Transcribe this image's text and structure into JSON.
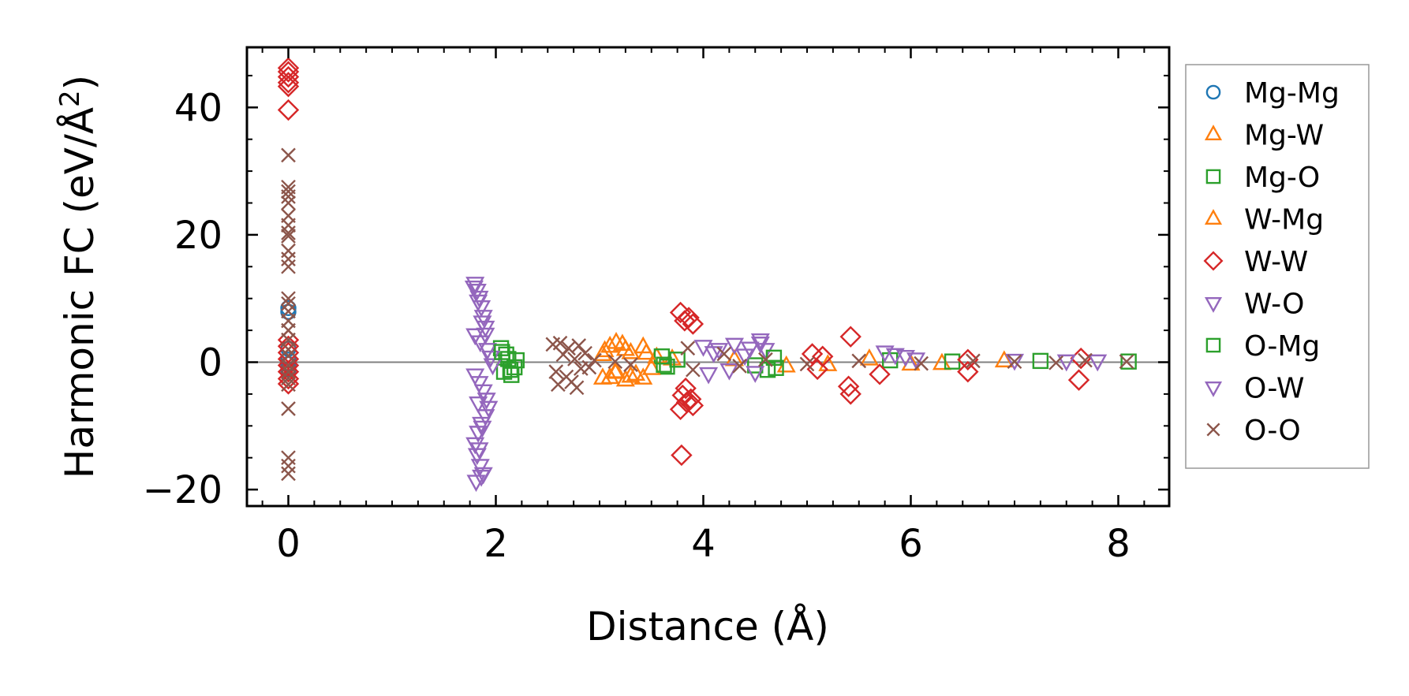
{
  "chart_data": {
    "type": "scatter",
    "xlabel": "Distance (Å)",
    "ylabel_main": "Harmonic FC (eV/Å",
    "ylabel_sup": "2",
    "ylabel_close": ")",
    "xlim": [
      -0.4,
      8.5
    ],
    "ylim": [
      -22,
      49
    ],
    "xticks": [
      0,
      2,
      4,
      6,
      8
    ],
    "yticks": [
      -20,
      0,
      20,
      40
    ],
    "xtick_labels": [
      "0",
      "2",
      "4",
      "6",
      "8"
    ],
    "ytick_labels": [
      "−20",
      "0",
      "20",
      "40"
    ],
    "zero_line": true,
    "legend_position": "outside-right",
    "legend_entries": [
      "Mg-Mg",
      "Mg-W",
      "Mg-O",
      "W-Mg",
      "W-W",
      "W-O",
      "O-Mg",
      "O-W",
      "O-O"
    ],
    "series": [
      {
        "name": "Mg-Mg",
        "marker": "circle",
        "color": "#1f77b4",
        "points": [
          [
            0,
            8.5
          ],
          [
            0,
            7.9
          ],
          [
            0,
            2.1
          ],
          [
            0,
            0.4
          ],
          [
            0,
            -0.3
          ],
          [
            0,
            -1.2
          ]
        ]
      },
      {
        "name": "Mg-W",
        "marker": "triangle-up",
        "color": "#ff7f0e",
        "points": [
          [
            3.03,
            1.2
          ],
          [
            3.03,
            -2.5
          ],
          [
            3.1,
            2.5
          ],
          [
            3.1,
            -2.4
          ],
          [
            3.16,
            3.1
          ],
          [
            3.16,
            -1.5
          ],
          [
            3.25,
            2.0
          ],
          [
            3.25,
            -2.8
          ],
          [
            3.3,
            1.5
          ],
          [
            3.3,
            -2.2
          ],
          [
            3.42,
            2.4
          ],
          [
            3.42,
            -2.5
          ],
          [
            3.55,
            0.8
          ],
          [
            3.7,
            0.5
          ],
          [
            4.3,
            0.4
          ],
          [
            4.8,
            -0.6
          ],
          [
            5.2,
            -0.4
          ],
          [
            5.6,
            0.5
          ],
          [
            6.0,
            -0.3
          ],
          [
            6.3,
            -0.2
          ],
          [
            6.9,
            0.2
          ]
        ]
      },
      {
        "name": "Mg-O",
        "marker": "square",
        "color": "#2ca02c",
        "points": [
          [
            2.05,
            2.2
          ],
          [
            2.08,
            -1.5
          ],
          [
            2.1,
            1.2
          ],
          [
            2.12,
            0.5
          ],
          [
            2.15,
            -2.0
          ],
          [
            2.18,
            -0.8
          ],
          [
            3.6,
            0.9
          ],
          [
            3.65,
            -0.7
          ],
          [
            3.75,
            0.4
          ],
          [
            4.5,
            -0.5
          ],
          [
            4.62,
            -1.2
          ],
          [
            4.7,
            -0.9
          ],
          [
            5.8,
            0.3
          ],
          [
            6.4,
            0.1
          ],
          [
            7.25,
            0.2
          ],
          [
            8.1,
            0.1
          ]
        ]
      },
      {
        "name": "W-Mg",
        "marker": "triangle-up",
        "color": "#ff7f0e",
        "points": [
          [
            3.05,
            1.8
          ],
          [
            3.15,
            -1.6
          ],
          [
            3.22,
            2.8
          ],
          [
            3.35,
            -1.9
          ],
          [
            3.45,
            1.4
          ],
          [
            3.5,
            -1.0
          ]
        ]
      },
      {
        "name": "W-W",
        "marker": "diamond",
        "color": "#d62728",
        "points": [
          [
            0,
            46.2
          ],
          [
            0,
            45.6
          ],
          [
            0,
            44.8
          ],
          [
            0,
            43.9
          ],
          [
            0,
            43.3
          ],
          [
            0,
            39.6
          ],
          [
            0,
            3.5
          ],
          [
            0,
            2.5
          ],
          [
            0,
            1.5
          ],
          [
            0,
            0.5
          ],
          [
            0,
            -0.5
          ],
          [
            0,
            -1.5
          ],
          [
            0,
            -2.6
          ],
          [
            0,
            -3.4
          ],
          [
            3.78,
            7.8
          ],
          [
            3.82,
            6.5
          ],
          [
            3.86,
            7.0
          ],
          [
            3.9,
            6.0
          ],
          [
            3.8,
            -5.2
          ],
          [
            3.84,
            -6.3
          ],
          [
            3.88,
            -5.8
          ],
          [
            3.78,
            -7.4
          ],
          [
            3.9,
            -6.8
          ],
          [
            3.79,
            -14.6
          ],
          [
            3.83,
            -4.1
          ],
          [
            5.05,
            1.3
          ],
          [
            5.15,
            0.9
          ],
          [
            5.1,
            -1.1
          ],
          [
            5.42,
            4.0
          ],
          [
            5.4,
            -3.8
          ],
          [
            5.42,
            -5.0
          ],
          [
            5.7,
            -1.9
          ],
          [
            6.55,
            0.4
          ],
          [
            6.55,
            -1.5
          ],
          [
            7.64,
            0.6
          ],
          [
            7.62,
            -2.8
          ]
        ]
      },
      {
        "name": "W-O",
        "marker": "triangle-down",
        "color": "#9467bd",
        "points": [
          [
            1.8,
            12.4
          ],
          [
            1.82,
            11.3
          ],
          [
            1.84,
            10.2
          ],
          [
            1.86,
            8.7
          ],
          [
            1.88,
            7.2
          ],
          [
            1.9,
            5.5
          ],
          [
            1.8,
            4.3
          ],
          [
            1.85,
            3.2
          ],
          [
            1.92,
            2.0
          ],
          [
            1.95,
            0.8
          ],
          [
            1.97,
            -0.4
          ],
          [
            1.8,
            -2.0
          ],
          [
            1.84,
            -3.2
          ],
          [
            1.88,
            -4.5
          ],
          [
            1.91,
            -5.8
          ],
          [
            1.93,
            -7.1
          ],
          [
            1.9,
            -8.4
          ],
          [
            1.86,
            -9.6
          ],
          [
            1.83,
            -11.0
          ],
          [
            1.8,
            -12.8
          ],
          [
            1.82,
            -14.5
          ],
          [
            1.85,
            -16.2
          ],
          [
            1.88,
            -17.5
          ],
          [
            1.81,
            -18.7
          ],
          [
            4.0,
            2.5
          ],
          [
            4.15,
            2.0
          ],
          [
            4.3,
            2.8
          ],
          [
            4.45,
            2.2
          ],
          [
            4.55,
            3.5
          ],
          [
            4.6,
            2.0
          ],
          [
            4.05,
            -1.8
          ],
          [
            4.25,
            -1.2
          ],
          [
            4.5,
            -1.6
          ],
          [
            5.75,
            1.6
          ],
          [
            5.85,
            1.2
          ],
          [
            6.05,
            0.5
          ],
          [
            7.0,
            0.3
          ],
          [
            7.5,
            0.2
          ]
        ]
      },
      {
        "name": "O-Mg",
        "marker": "square",
        "color": "#2ca02c",
        "points": [
          [
            2.06,
            1.6
          ],
          [
            2.14,
            -1.2
          ],
          [
            2.2,
            0.3
          ],
          [
            3.62,
            -0.4
          ],
          [
            4.68,
            0.7
          ]
        ]
      },
      {
        "name": "O-W",
        "marker": "triangle-down",
        "color": "#9467bd",
        "points": [
          [
            1.79,
            11.8
          ],
          [
            1.83,
            9.6
          ],
          [
            1.87,
            6.3
          ],
          [
            1.9,
            4.4
          ],
          [
            1.83,
            -6.4
          ],
          [
            1.87,
            -10.2
          ],
          [
            1.84,
            -13.6
          ],
          [
            1.86,
            -17.9
          ],
          [
            4.1,
            1.5
          ],
          [
            4.4,
            1.1
          ],
          [
            4.55,
            3.0
          ],
          [
            5.95,
            0.9
          ],
          [
            7.8,
            0.2
          ]
        ]
      },
      {
        "name": "O-O",
        "marker": "cross",
        "color": "#8c564b",
        "points": [
          [
            0,
            32.5
          ],
          [
            0,
            27.5
          ],
          [
            0,
            26.8
          ],
          [
            0,
            26.0
          ],
          [
            0,
            25.0
          ],
          [
            0,
            23.0
          ],
          [
            0,
            21.5
          ],
          [
            0,
            20.3
          ],
          [
            0,
            19.8
          ],
          [
            0,
            17.5
          ],
          [
            0,
            16.2
          ],
          [
            0,
            15.0
          ],
          [
            0,
            10.0
          ],
          [
            0,
            9.2
          ],
          [
            0,
            8.0
          ],
          [
            0,
            6.5
          ],
          [
            0,
            5.0
          ],
          [
            0,
            3.5
          ],
          [
            0,
            2.0
          ],
          [
            0,
            1.0
          ],
          [
            0,
            -0.5
          ],
          [
            0,
            -1.5
          ],
          [
            0,
            -2.5
          ],
          [
            0,
            -3.5
          ],
          [
            0,
            -7.3
          ],
          [
            0,
            -15.0
          ],
          [
            0,
            -16.3
          ],
          [
            0,
            -17.5
          ],
          [
            2.55,
            2.8
          ],
          [
            2.58,
            -1.5
          ],
          [
            2.62,
            3.0
          ],
          [
            2.65,
            1.2
          ],
          [
            2.68,
            -2.3
          ],
          [
            2.7,
            2.2
          ],
          [
            2.73,
            -3.1
          ],
          [
            2.76,
            0.5
          ],
          [
            2.78,
            -4.0
          ],
          [
            2.8,
            2.6
          ],
          [
            2.82,
            -1.0
          ],
          [
            2.86,
            1.4
          ],
          [
            2.6,
            -3.5
          ],
          [
            2.9,
            -0.8
          ],
          [
            2.95,
            0.3
          ],
          [
            3.15,
            0.1
          ],
          [
            3.3,
            -0.4
          ],
          [
            3.85,
            2.2
          ],
          [
            3.9,
            -1.2
          ],
          [
            4.2,
            1.3
          ],
          [
            4.35,
            -0.6
          ],
          [
            4.6,
            0.4
          ],
          [
            5.0,
            -0.3
          ],
          [
            5.5,
            0.2
          ],
          [
            6.1,
            -0.2
          ],
          [
            6.6,
            0.2
          ],
          [
            7.0,
            0.1
          ],
          [
            7.4,
            -0.1
          ],
          [
            7.68,
            0.3
          ],
          [
            8.08,
            0.1
          ]
        ]
      }
    ]
  }
}
